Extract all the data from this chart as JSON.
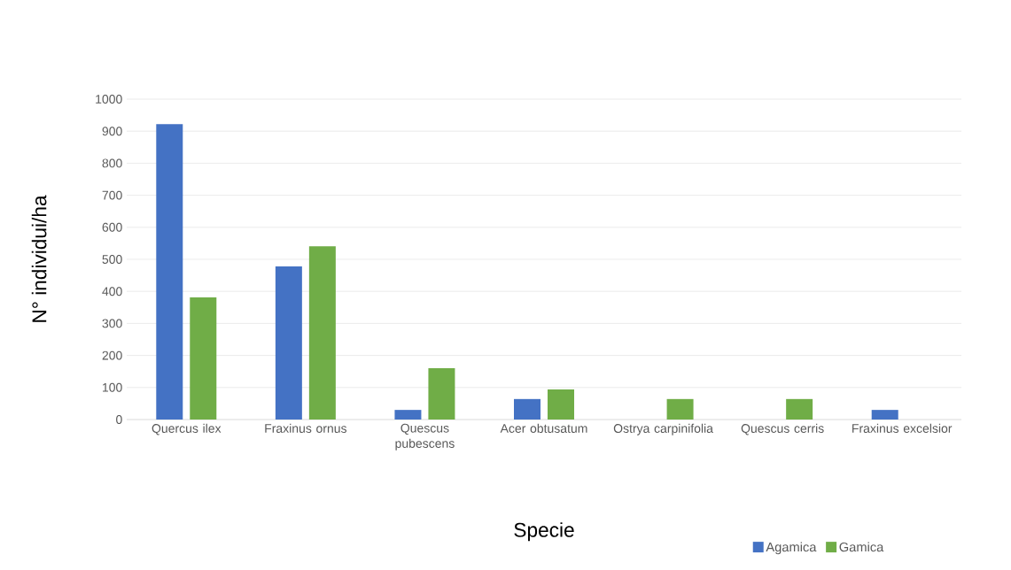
{
  "chart_data": {
    "type": "bar",
    "xlabel": "Specie",
    "ylabel": "N° individui/ha",
    "categories": [
      "Quercus ilex",
      "Fraxinus ornus",
      "Quescus pubescens",
      "Acer obtusatum",
      "Ostrya carpinifolia",
      "Quescus cerris",
      "Fraxinus excelsior"
    ],
    "series": [
      {
        "name": "Agamica",
        "color": "#4472c4",
        "values": [
          922,
          478,
          30,
          64,
          null,
          null,
          30
        ]
      },
      {
        "name": "Gamica",
        "color": "#70ad47",
        "values": [
          381,
          541,
          160,
          94,
          64,
          64,
          null
        ]
      }
    ],
    "ylim": [
      0,
      1000
    ],
    "yticks": [
      0,
      100,
      200,
      300,
      400,
      500,
      600,
      700,
      800,
      900,
      1000
    ],
    "grid": "y",
    "legend": "bottom right"
  }
}
